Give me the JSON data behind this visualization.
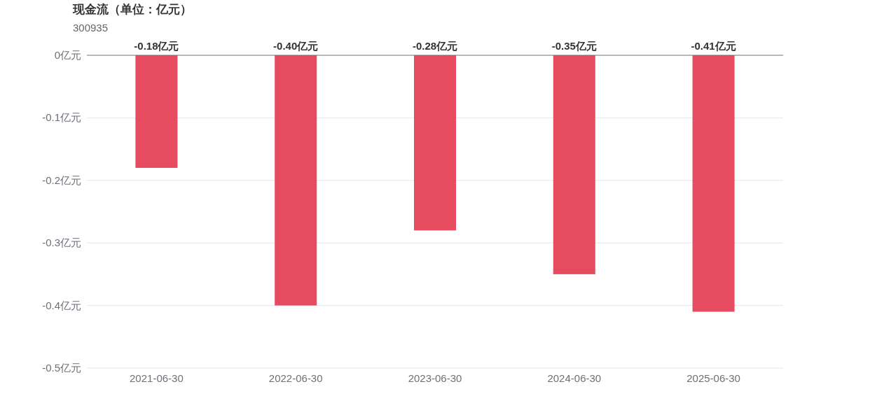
{
  "chart_data": {
    "type": "bar",
    "title": "现金流（单位：亿元）",
    "subtitle": "300935",
    "categories": [
      "2021-06-30",
      "2022-06-30",
      "2023-06-30",
      "2024-06-30",
      "2025-06-30"
    ],
    "values": [
      -0.18,
      -0.4,
      -0.28,
      -0.35,
      -0.41
    ],
    "value_labels": [
      "-0.18亿元",
      "-0.40亿元",
      "-0.28亿元",
      "-0.35亿元",
      "-0.41亿元"
    ],
    "color": "#e64b5f",
    "ylim": [
      -0.5,
      0
    ],
    "yticks": [
      {
        "value": 0,
        "label": "0亿元"
      },
      {
        "value": -0.1,
        "label": "-0.1亿元"
      },
      {
        "value": -0.2,
        "label": "-0.2亿元"
      },
      {
        "value": -0.3,
        "label": "-0.3亿元"
      },
      {
        "value": -0.4,
        "label": "-0.4亿元"
      },
      {
        "value": -0.5,
        "label": "-0.5亿元"
      }
    ],
    "grid": "y"
  }
}
